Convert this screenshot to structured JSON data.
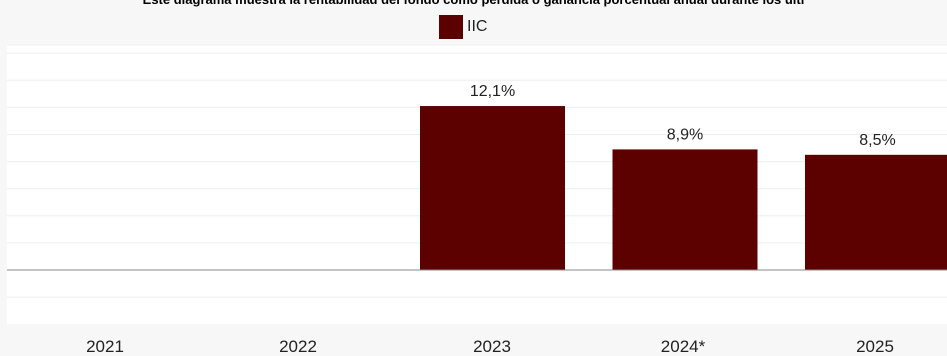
{
  "chart_data": {
    "type": "bar",
    "title": "Este diagrama muestra la rentabilidad del fondo como pérdida o ganancia porcentual anual durante los últi",
    "legend_position": "top-center",
    "categories": [
      "2021",
      "2022",
      "2023",
      "2024*",
      "2025"
    ],
    "series": [
      {
        "name": "IIC",
        "color": "#5c0000",
        "values": [
          null,
          null,
          12.1,
          8.9,
          8.5
        ],
        "labels": [
          "",
          "",
          "12,1%",
          "8,9%",
          "8,5%"
        ]
      }
    ],
    "ylim": [
      -4,
      16
    ],
    "grid": true
  }
}
